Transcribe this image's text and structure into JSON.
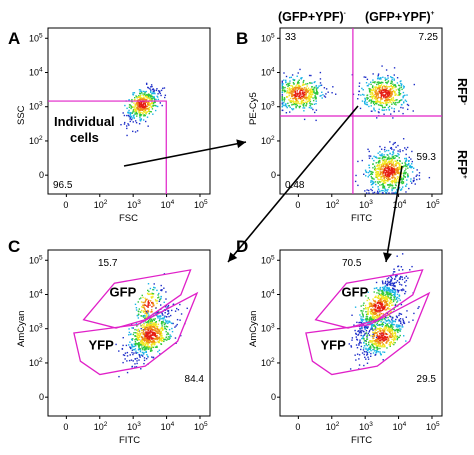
{
  "figure": {
    "header_left": "(GFP+YPF)",
    "header_left_sup": "-",
    "header_right": "(GFP+YPF)",
    "header_right_sup": "+",
    "side_top": "RFP",
    "side_top_sup": "-",
    "side_bottom": "RFP",
    "side_bottom_sup": "+"
  },
  "chart_data": [
    {
      "panel": "A",
      "type": "scatter",
      "xlabel": "FSC",
      "ylabel": "SSC",
      "xticks": [
        "0",
        "10^2",
        "10^3",
        "10^4",
        "10^5"
      ],
      "yticks": [
        "0",
        "10^2",
        "10^3",
        "10^4",
        "10^5"
      ],
      "gate_percentages": [
        {
          "label": "96.5",
          "pos": "bottom-left"
        }
      ],
      "annotation": "Individual cells",
      "populations": [
        {
          "name": "",
          "center_x": 1800,
          "center_y": 1200,
          "spread": "tight"
        }
      ]
    },
    {
      "panel": "B",
      "type": "scatter",
      "xlabel": "FITC",
      "ylabel": "PE-Cy5",
      "xticks": [
        "0",
        "10^2",
        "10^3",
        "10^4",
        "10^5"
      ],
      "yticks": [
        "0",
        "10^2",
        "10^3",
        "10^4",
        "10^5"
      ],
      "quadrant_percentages": [
        {
          "label": "33",
          "pos": "top-left"
        },
        {
          "label": "7.25",
          "pos": "top-right"
        },
        {
          "label": "0.48",
          "pos": "bottom-left"
        },
        {
          "label": "59.3",
          "pos": "bottom-right"
        }
      ],
      "populations": [
        {
          "name": "",
          "center_x": 1,
          "center_y": 2500,
          "spread": "medium"
        },
        {
          "name": "",
          "center_x": 3500,
          "center_y": 2500,
          "spread": "medium"
        },
        {
          "name": "",
          "center_x": 5000,
          "center_y": 12,
          "spread": "dense"
        }
      ]
    },
    {
      "panel": "C",
      "type": "scatter",
      "xlabel": "FITC",
      "ylabel": "AmCyan",
      "xticks": [
        "0",
        "10^2",
        "10^3",
        "10^4",
        "10^5"
      ],
      "yticks": [
        "0",
        "10^2",
        "10^3",
        "10^4",
        "10^5"
      ],
      "gate_labels": [
        "GFP",
        "YFP"
      ],
      "gate_percentages": [
        {
          "label": "15.7",
          "pos": "top-left"
        },
        {
          "label": "84.4",
          "pos": "bottom-right"
        }
      ],
      "populations": [
        {
          "name": "GFP",
          "center_x": 2800,
          "center_y": 5000,
          "spread": "small"
        },
        {
          "name": "YFP",
          "center_x": 3200,
          "center_y": 700,
          "spread": "dense"
        }
      ]
    },
    {
      "panel": "D",
      "type": "scatter",
      "xlabel": "FITC",
      "ylabel": "AmCyan",
      "xticks": [
        "0",
        "10^2",
        "10^3",
        "10^4",
        "10^5"
      ],
      "yticks": [
        "0",
        "10^2",
        "10^3",
        "10^4",
        "10^5"
      ],
      "gate_labels": [
        "GFP",
        "YFP"
      ],
      "gate_percentages": [
        {
          "label": "70.5",
          "pos": "top-left"
        },
        {
          "label": "29.5",
          "pos": "bottom-right"
        }
      ],
      "populations": [
        {
          "name": "GFP",
          "center_x": 2500,
          "center_y": 4500,
          "spread": "dense"
        },
        {
          "name": "YFP",
          "center_x": 3200,
          "center_y": 600,
          "spread": "medium"
        }
      ]
    }
  ],
  "colors": {
    "gate": "#e020c8",
    "density": [
      "#1e2ec8",
      "#19b4e6",
      "#2ec83a",
      "#f0e61e",
      "#f08c14",
      "#e61e14"
    ]
  }
}
